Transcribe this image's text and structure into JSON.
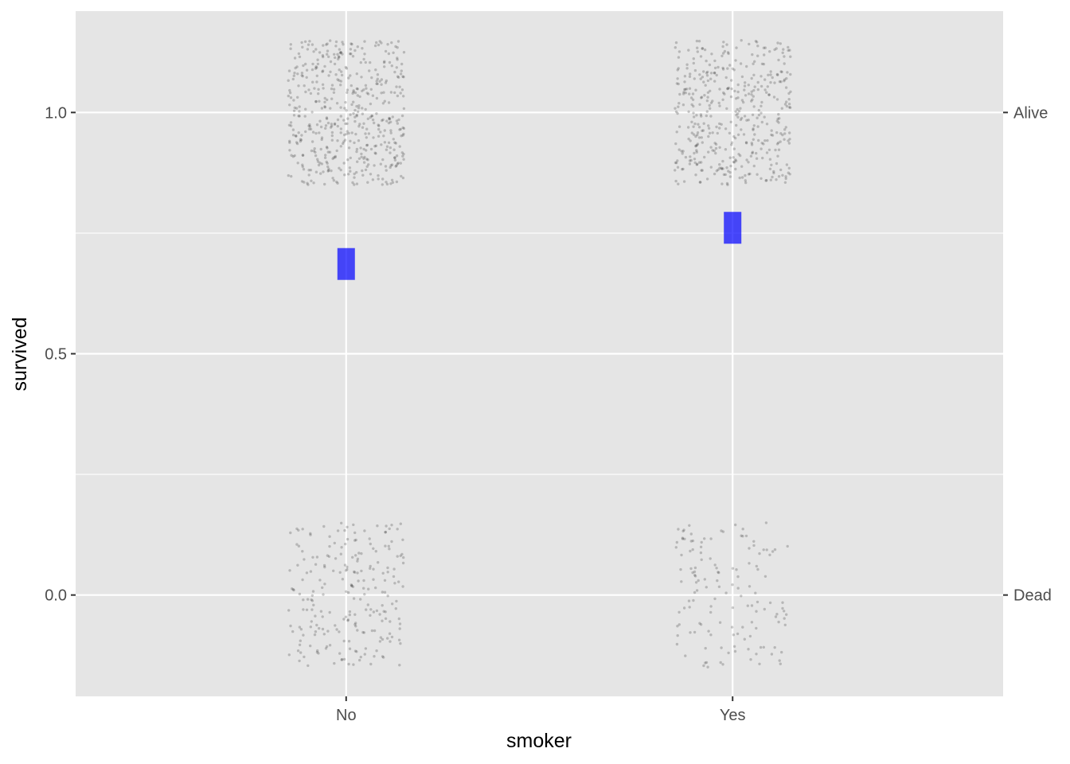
{
  "chart_data": {
    "type": "scatter",
    "title": "",
    "xlabel": "smoker",
    "ylabel": "survived",
    "x_categories": [
      "No",
      "Yes"
    ],
    "ylim": [
      -0.21,
      1.21
    ],
    "y_ticks": [
      {
        "value": 0.0,
        "label": "0.0"
      },
      {
        "value": 0.5,
        "label": "0.5"
      },
      {
        "value": 1.0,
        "label": "1.0"
      }
    ],
    "y_minor_ticks": [
      0.25,
      0.75
    ],
    "secondary_y_ticks": [
      {
        "value": 0,
        "label": "Dead"
      },
      {
        "value": 1,
        "label": "Alive"
      }
    ],
    "jitter": {
      "x_width": 0.15,
      "y_height": 0.15
    },
    "groups": [
      {
        "smoker": "No",
        "alive_count": 502,
        "dead_count": 230
      },
      {
        "smoker": "Yes",
        "alive_count": 443,
        "dead_count": 139
      }
    ],
    "proportions": [
      {
        "smoker": "No",
        "value": 0.686
      },
      {
        "smoker": "Yes",
        "value": 0.761
      }
    ],
    "point_color": "#000000",
    "point_alpha": 0.2,
    "summary_color": "#0000ff",
    "panel_background": "#e5e5e5",
    "grid": true,
    "legend": "none"
  }
}
